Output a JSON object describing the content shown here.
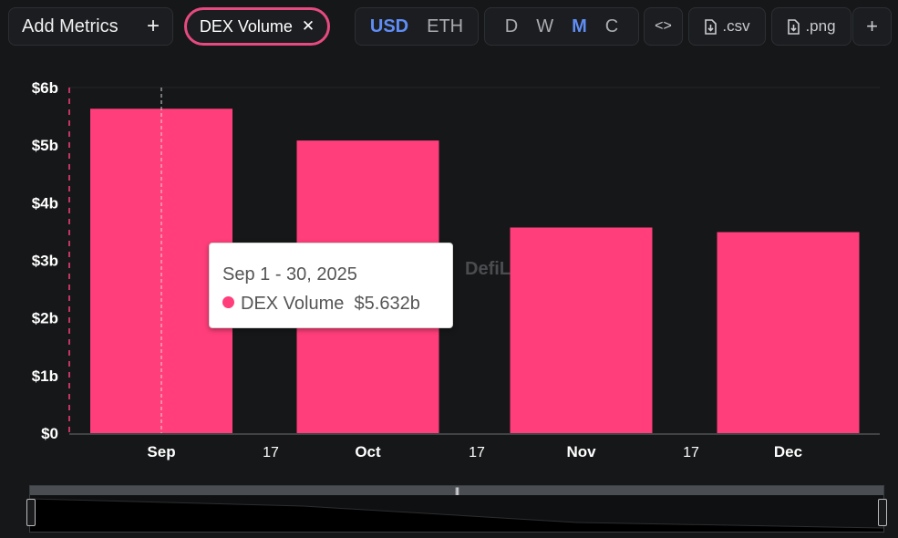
{
  "toolbar": {
    "add_metrics_label": "Add Metrics",
    "add_icon": "+",
    "metric_chip_label": "DEX Volume",
    "close_icon": "✕",
    "currency_options": [
      "USD",
      "ETH"
    ],
    "currency_selected": "USD",
    "period_options": [
      "D",
      "W",
      "M",
      "C"
    ],
    "period_selected": "M",
    "embed_icon": "<>",
    "csv_label": ".csv",
    "png_label": ".png",
    "more_icon": "+"
  },
  "watermark": "DefiL",
  "tooltip": {
    "date": "Sep 1 - 30, 2025",
    "series": "DEX Volume",
    "value": "$5.632b"
  },
  "colors": {
    "bar": "#ff3e7b",
    "accent": "#5f8df5",
    "chip_border": "#e64a7f"
  },
  "chart_data": {
    "type": "bar",
    "categories": [
      "Sep",
      "Oct",
      "Nov",
      "Dec"
    ],
    "x_ticks": [
      "Sep",
      "17",
      "Oct",
      "17",
      "Nov",
      "17",
      "Dec"
    ],
    "series": [
      {
        "name": "DEX Volume",
        "values": [
          5.632,
          5.08,
          3.57,
          3.49
        ]
      }
    ],
    "y_ticks": [
      "$0",
      "$1b",
      "$2b",
      "$3b",
      "$4b",
      "$5b",
      "$6b"
    ],
    "ylim": [
      0,
      6
    ],
    "unit": "b",
    "grid": false
  }
}
